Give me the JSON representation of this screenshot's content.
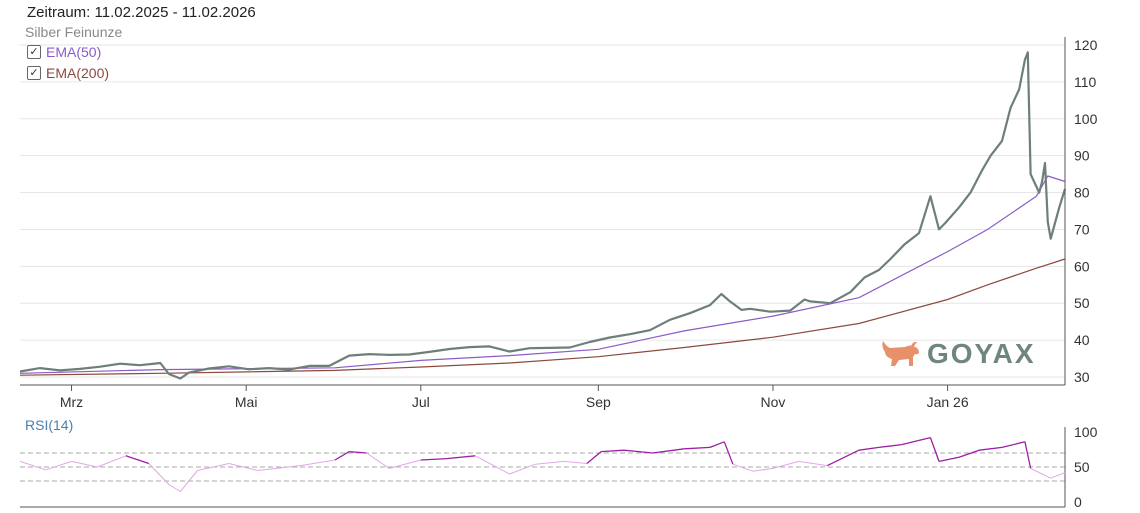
{
  "header": {
    "period": "Zeitraum: 11.02.2025 - 11.02.2026"
  },
  "legend": {
    "main_series": "Silber Feinunze",
    "ema50": "EMA(50)",
    "ema200": "EMA(200)",
    "check_mark": "✓"
  },
  "rsi": {
    "title": "RSI(14)"
  },
  "logo": {
    "text": "GOYAX"
  },
  "colors": {
    "price": "#6e7f7a",
    "ema50": "#8a5cc8",
    "ema200": "#8b4a3e",
    "rsi": "#9b1fa3",
    "grid": "#e6e6e6",
    "logo_bull": "#e8906a",
    "logo_text": "#6f8580"
  },
  "chart_data": [
    {
      "type": "line",
      "x_start": "2025-02-11",
      "x_end": "2026-02-11",
      "x_ticks": [
        {
          "label": "Mrz",
          "date": "2025-03-01"
        },
        {
          "label": "Mai",
          "date": "2025-05-01"
        },
        {
          "label": "Jul",
          "date": "2025-07-01"
        },
        {
          "label": "Sep",
          "date": "2025-09-01"
        },
        {
          "label": "Nov",
          "date": "2025-11-01"
        },
        {
          "label": "Jan 26",
          "date": "2026-01-01"
        }
      ],
      "y_ticks": [
        30,
        40,
        50,
        60,
        70,
        80,
        90,
        100,
        110,
        120
      ],
      "ylim": [
        27.5,
        121.5
      ],
      "grid": true,
      "series": [
        {
          "name": "Silber Feinunze",
          "points": [
            [
              "2025-02-11",
              31.5
            ],
            [
              "2025-02-18",
              32.4
            ],
            [
              "2025-02-25",
              31.8
            ],
            [
              "2025-03-04",
              32.2
            ],
            [
              "2025-03-11",
              32.8
            ],
            [
              "2025-03-18",
              33.6
            ],
            [
              "2025-03-25",
              33.2
            ],
            [
              "2025-04-01",
              33.8
            ],
            [
              "2025-04-04",
              30.8
            ],
            [
              "2025-04-08",
              29.6
            ],
            [
              "2025-04-11",
              31.2
            ],
            [
              "2025-04-18",
              32.3
            ],
            [
              "2025-04-25",
              32.9
            ],
            [
              "2025-05-02",
              32.1
            ],
            [
              "2025-05-09",
              32.4
            ],
            [
              "2025-05-16",
              32.0
            ],
            [
              "2025-05-23",
              33.0
            ],
            [
              "2025-05-30",
              33.0
            ],
            [
              "2025-06-06",
              35.8
            ],
            [
              "2025-06-13",
              36.2
            ],
            [
              "2025-06-20",
              36.0
            ],
            [
              "2025-06-27",
              36.1
            ],
            [
              "2025-07-04",
              36.8
            ],
            [
              "2025-07-11",
              37.6
            ],
            [
              "2025-07-18",
              38.1
            ],
            [
              "2025-07-25",
              38.3
            ],
            [
              "2025-08-01",
              36.9
            ],
            [
              "2025-08-08",
              37.8
            ],
            [
              "2025-08-15",
              37.9
            ],
            [
              "2025-08-22",
              38.0
            ],
            [
              "2025-08-29",
              39.5
            ],
            [
              "2025-09-05",
              40.7
            ],
            [
              "2025-09-12",
              41.6
            ],
            [
              "2025-09-19",
              42.7
            ],
            [
              "2025-09-26",
              45.5
            ],
            [
              "2025-10-03",
              47.3
            ],
            [
              "2025-10-10",
              49.5
            ],
            [
              "2025-10-14",
              52.5
            ],
            [
              "2025-10-17",
              50.5
            ],
            [
              "2025-10-21",
              48.2
            ],
            [
              "2025-10-24",
              48.5
            ],
            [
              "2025-10-31",
              47.7
            ],
            [
              "2025-11-07",
              48.0
            ],
            [
              "2025-11-12",
              51.0
            ],
            [
              "2025-11-14",
              50.5
            ],
            [
              "2025-11-21",
              50.0
            ],
            [
              "2025-11-28",
              53.0
            ],
            [
              "2025-12-03",
              57.0
            ],
            [
              "2025-12-08",
              59.0
            ],
            [
              "2025-12-12",
              62.0
            ],
            [
              "2025-12-17",
              66.0
            ],
            [
              "2025-12-22",
              69.0
            ],
            [
              "2025-12-26",
              79.0
            ],
            [
              "2025-12-29",
              70.0
            ],
            [
              "2025-12-31",
              71.6
            ],
            [
              "2026-01-05",
              76.0
            ],
            [
              "2026-01-09",
              80.0
            ],
            [
              "2026-01-13",
              86.0
            ],
            [
              "2026-01-16",
              90.0
            ],
            [
              "2026-01-20",
              94.0
            ],
            [
              "2026-01-23",
              103.0
            ],
            [
              "2026-01-26",
              108.0
            ],
            [
              "2026-01-28",
              116.0
            ],
            [
              "2026-01-29",
              118.0
            ],
            [
              "2026-01-30",
              85.0
            ],
            [
              "2026-02-02",
              80.0
            ],
            [
              "2026-02-03",
              83.0
            ],
            [
              "2026-02-04",
              88.0
            ],
            [
              "2026-02-05",
              72.0
            ],
            [
              "2026-02-06",
              67.5
            ],
            [
              "2026-02-09",
              76.0
            ],
            [
              "2026-02-11",
              81.0
            ]
          ]
        },
        {
          "name": "EMA(50)",
          "points": [
            [
              "2025-02-11",
              31.0
            ],
            [
              "2025-04-01",
              32.0
            ],
            [
              "2025-06-01",
              32.5
            ],
            [
              "2025-07-01",
              34.5
            ],
            [
              "2025-08-01",
              35.8
            ],
            [
              "2025-09-01",
              37.5
            ],
            [
              "2025-10-01",
              42.5
            ],
            [
              "2025-11-01",
              46.5
            ],
            [
              "2025-12-01",
              51.5
            ],
            [
              "2026-01-01",
              64.0
            ],
            [
              "2026-01-15",
              70.0
            ],
            [
              "2026-02-01",
              79.0
            ],
            [
              "2026-02-05",
              84.5
            ],
            [
              "2026-02-11",
              83.0
            ]
          ]
        },
        {
          "name": "EMA(200)",
          "points": [
            [
              "2025-02-11",
              30.5
            ],
            [
              "2025-04-01",
              31.0
            ],
            [
              "2025-06-01",
              31.8
            ],
            [
              "2025-07-01",
              32.7
            ],
            [
              "2025-08-01",
              33.8
            ],
            [
              "2025-09-01",
              35.5
            ],
            [
              "2025-10-01",
              38.0
            ],
            [
              "2025-11-01",
              40.8
            ],
            [
              "2025-12-01",
              44.5
            ],
            [
              "2026-01-01",
              51.0
            ],
            [
              "2026-01-15",
              55.0
            ],
            [
              "2026-02-01",
              59.5
            ],
            [
              "2026-02-11",
              62.0
            ]
          ]
        }
      ]
    },
    {
      "type": "line",
      "title": "RSI(14)",
      "x_start": "2025-02-11",
      "x_end": "2026-02-11",
      "y_ticks": [
        0,
        50,
        100
      ],
      "ylim": [
        0,
        100
      ],
      "reference_lines": [
        30,
        50,
        70
      ],
      "series": [
        {
          "name": "RSI(14)",
          "points": [
            [
              "2025-02-11",
              58
            ],
            [
              "2025-02-20",
              46
            ],
            [
              "2025-03-01",
              58
            ],
            [
              "2025-03-10",
              50
            ],
            [
              "2025-03-20",
              66
            ],
            [
              "2025-03-28",
              55
            ],
            [
              "2025-04-04",
              25
            ],
            [
              "2025-04-08",
              15
            ],
            [
              "2025-04-14",
              45
            ],
            [
              "2025-04-25",
              55
            ],
            [
              "2025-05-05",
              45
            ],
            [
              "2025-05-20",
              52
            ],
            [
              "2025-06-01",
              60
            ],
            [
              "2025-06-06",
              72
            ],
            [
              "2025-06-12",
              70
            ],
            [
              "2025-06-20",
              48
            ],
            [
              "2025-07-01",
              60
            ],
            [
              "2025-07-10",
              62
            ],
            [
              "2025-07-20",
              66
            ],
            [
              "2025-08-01",
              40
            ],
            [
              "2025-08-10",
              54
            ],
            [
              "2025-08-20",
              58
            ],
            [
              "2025-08-28",
              55
            ],
            [
              "2025-09-02",
              72
            ],
            [
              "2025-09-10",
              74
            ],
            [
              "2025-09-20",
              70
            ],
            [
              "2025-10-01",
              76
            ],
            [
              "2025-10-10",
              78
            ],
            [
              "2025-10-15",
              86
            ],
            [
              "2025-10-18",
              54
            ],
            [
              "2025-10-25",
              44
            ],
            [
              "2025-11-01",
              48
            ],
            [
              "2025-11-10",
              58
            ],
            [
              "2025-11-20",
              52
            ],
            [
              "2025-12-01",
              74
            ],
            [
              "2025-12-08",
              78
            ],
            [
              "2025-12-16",
              82
            ],
            [
              "2025-12-22",
              88
            ],
            [
              "2025-12-26",
              92
            ],
            [
              "2025-12-29",
              58
            ],
            [
              "2026-01-05",
              64
            ],
            [
              "2026-01-12",
              74
            ],
            [
              "2026-01-20",
              78
            ],
            [
              "2026-01-28",
              86
            ],
            [
              "2026-01-30",
              48
            ],
            [
              "2026-02-03",
              40
            ],
            [
              "2026-02-06",
              34
            ],
            [
              "2026-02-11",
              42
            ]
          ]
        }
      ]
    }
  ]
}
